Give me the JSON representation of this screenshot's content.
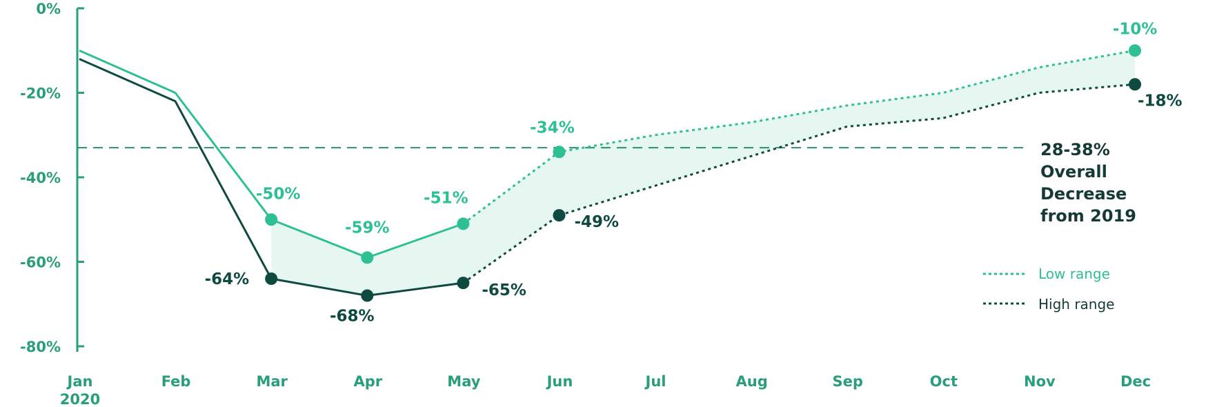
{
  "chart_data": {
    "type": "line",
    "categories": [
      "Jan",
      "Feb",
      "Mar",
      "Apr",
      "May",
      "Jun",
      "Jul",
      "Aug",
      "Sep",
      "Oct",
      "Nov",
      "Dec"
    ],
    "year_label": "2020",
    "y_ticks": [
      "0%",
      "-20%",
      "-40%",
      "-60%",
      "-80%"
    ],
    "ylim": [
      -80,
      0
    ],
    "grid": false,
    "series": [
      {
        "name": "Low range",
        "color": "#2fbf95",
        "values": [
          -10,
          -20,
          -50,
          -59,
          -51,
          -34,
          -30,
          -27,
          -23,
          -20,
          -14,
          -10
        ],
        "data_labels": [
          null,
          null,
          "-50%",
          "-59%",
          "-51%",
          "-34%",
          null,
          null,
          null,
          null,
          null,
          "-10%"
        ],
        "marked": [
          false,
          false,
          true,
          true,
          true,
          true,
          false,
          false,
          false,
          false,
          false,
          true
        ]
      },
      {
        "name": "High range",
        "color": "#0e4a40",
        "values": [
          -12,
          -22,
          -64,
          -68,
          -65,
          -49,
          -42,
          -35,
          -28,
          -26,
          -20,
          -18
        ],
        "data_labels": [
          null,
          null,
          "-64%",
          "-68%",
          "-65%",
          "-49%",
          null,
          null,
          null,
          null,
          null,
          "-18%"
        ],
        "marked": [
          false,
          false,
          true,
          true,
          true,
          true,
          false,
          false,
          false,
          false,
          false,
          true
        ]
      }
    ],
    "solid_through_index": 4,
    "reference_line": {
      "value": -33
    },
    "annotation": [
      "28-38%",
      "Overall",
      "Decrease",
      "from 2019"
    ],
    "legend": [
      "Low range",
      "High range"
    ],
    "colors": {
      "axis": "#2a9d7a",
      "band": "#e6f7f1",
      "low": "#2fbf95",
      "high": "#0e4a40",
      "reference": "#2a8f70"
    }
  }
}
